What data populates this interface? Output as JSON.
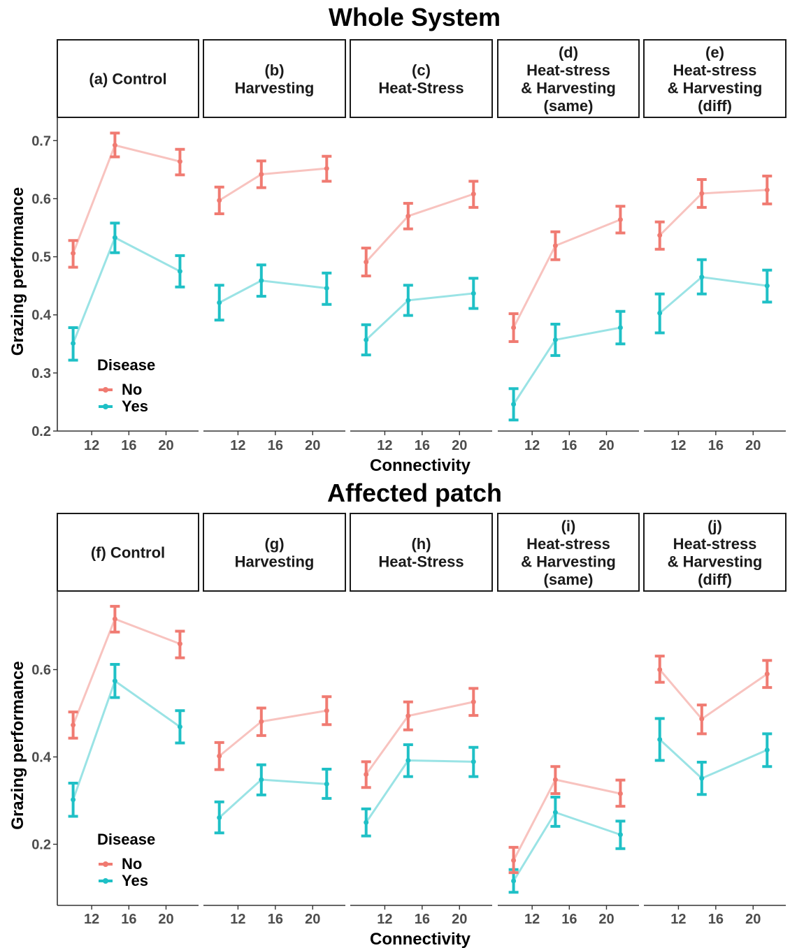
{
  "colors": {
    "No": "#f07b72",
    "Yes": "#1fc0c6"
  },
  "chart_data": [
    {
      "type": "line",
      "section_title": "Whole System",
      "xlabel": "Connectivity",
      "ylabel": "Grazing performance",
      "ylim": [
        0.2,
        0.74
      ],
      "y_ticks": [
        0.2,
        0.3,
        0.4,
        0.5,
        0.6,
        0.7
      ],
      "y_tick_labels": [
        "0.2",
        "0.3",
        "0.4",
        "0.5",
        "0.6",
        "0.7"
      ],
      "xlim": [
        8.3,
        23.5
      ],
      "x_ticks": [
        12,
        16,
        20
      ],
      "x_tick_labels": [
        "12",
        "16",
        "20"
      ],
      "x": [
        10,
        14.5,
        21.5
      ],
      "legend": {
        "title": "Disease",
        "entries": [
          "No",
          "Yes"
        ],
        "placement": "bottom-left of first panel"
      },
      "panels": [
        {
          "strip": [
            "(a) Control"
          ],
          "series": [
            {
              "name": "No",
              "values": [
                0.506,
                0.692,
                0.664
              ],
              "lower": [
                0.482,
                0.672,
                0.641
              ],
              "upper": [
                0.528,
                0.713,
                0.685
              ]
            },
            {
              "name": "Yes",
              "values": [
                0.351,
                0.533,
                0.475
              ],
              "lower": [
                0.322,
                0.507,
                0.448
              ],
              "upper": [
                0.378,
                0.558,
                0.502
              ]
            }
          ]
        },
        {
          "strip": [
            "(b)",
            "Harvesting"
          ],
          "series": [
            {
              "name": "No",
              "values": [
                0.597,
                0.642,
                0.652
              ],
              "lower": [
                0.574,
                0.619,
                0.63
              ],
              "upper": [
                0.62,
                0.665,
                0.673
              ]
            },
            {
              "name": "Yes",
              "values": [
                0.421,
                0.459,
                0.446
              ],
              "lower": [
                0.391,
                0.432,
                0.418
              ],
              "upper": [
                0.451,
                0.486,
                0.472
              ]
            }
          ]
        },
        {
          "strip": [
            "(c)",
            "Heat-Stress"
          ],
          "series": [
            {
              "name": "No",
              "values": [
                0.491,
                0.57,
                0.608
              ],
              "lower": [
                0.467,
                0.548,
                0.585
              ],
              "upper": [
                0.515,
                0.592,
                0.63
              ]
            },
            {
              "name": "Yes",
              "values": [
                0.357,
                0.425,
                0.437
              ],
              "lower": [
                0.331,
                0.399,
                0.411
              ],
              "upper": [
                0.383,
                0.451,
                0.463
              ]
            }
          ]
        },
        {
          "strip": [
            "(d)",
            "Heat-stress",
            "& Harvesting",
            "(same)"
          ],
          "series": [
            {
              "name": "No",
              "values": [
                0.378,
                0.519,
                0.564
              ],
              "lower": [
                0.354,
                0.495,
                0.541
              ],
              "upper": [
                0.402,
                0.543,
                0.587
              ]
            },
            {
              "name": "Yes",
              "values": [
                0.246,
                0.357,
                0.378
              ],
              "lower": [
                0.219,
                0.33,
                0.35
              ],
              "upper": [
                0.273,
                0.384,
                0.406
              ]
            }
          ]
        },
        {
          "strip": [
            "(e)",
            "Heat-stress",
            "& Harvesting",
            "(diff)"
          ],
          "series": [
            {
              "name": "No",
              "values": [
                0.537,
                0.609,
                0.615
              ],
              "lower": [
                0.513,
                0.585,
                0.591
              ],
              "upper": [
                0.56,
                0.633,
                0.639
              ]
            },
            {
              "name": "Yes",
              "values": [
                0.403,
                0.465,
                0.45
              ],
              "lower": [
                0.369,
                0.436,
                0.422
              ],
              "upper": [
                0.436,
                0.495,
                0.477
              ]
            }
          ]
        }
      ]
    },
    {
      "type": "line",
      "section_title": "Affected patch",
      "xlabel": "Connectivity",
      "ylabel": "Grazing performance",
      "ylim": [
        0.06,
        0.78
      ],
      "y_ticks": [
        0.2,
        0.4,
        0.6
      ],
      "y_tick_labels": [
        "0.2",
        "0.4",
        "0.6"
      ],
      "xlim": [
        8.3,
        23.5
      ],
      "x_ticks": [
        12,
        16,
        20
      ],
      "x_tick_labels": [
        "12",
        "16",
        "20"
      ],
      "x": [
        10,
        14.5,
        21.5
      ],
      "legend": {
        "title": "Disease",
        "entries": [
          "No",
          "Yes"
        ],
        "placement": "bottom-left of first panel"
      },
      "panels": [
        {
          "strip": [
            "(f) Control"
          ],
          "series": [
            {
              "name": "No",
              "values": [
                0.473,
                0.716,
                0.659
              ],
              "lower": [
                0.443,
                0.686,
                0.627
              ],
              "upper": [
                0.503,
                0.745,
                0.688
              ]
            },
            {
              "name": "Yes",
              "values": [
                0.302,
                0.574,
                0.469
              ],
              "lower": [
                0.264,
                0.536,
                0.432
              ],
              "upper": [
                0.34,
                0.612,
                0.506
              ]
            }
          ]
        },
        {
          "strip": [
            "(g)",
            "Harvesting"
          ],
          "series": [
            {
              "name": "No",
              "values": [
                0.402,
                0.481,
                0.506
              ],
              "lower": [
                0.371,
                0.449,
                0.474
              ],
              "upper": [
                0.433,
                0.512,
                0.538
              ]
            },
            {
              "name": "Yes",
              "values": [
                0.261,
                0.348,
                0.338
              ],
              "lower": [
                0.226,
                0.313,
                0.305
              ],
              "upper": [
                0.297,
                0.382,
                0.372
              ]
            }
          ]
        },
        {
          "strip": [
            "(h)",
            "Heat-Stress"
          ],
          "series": [
            {
              "name": "No",
              "values": [
                0.36,
                0.494,
                0.526
              ],
              "lower": [
                0.33,
                0.462,
                0.495
              ],
              "upper": [
                0.389,
                0.526,
                0.557
              ]
            },
            {
              "name": "Yes",
              "values": [
                0.25,
                0.392,
                0.389
              ],
              "lower": [
                0.219,
                0.355,
                0.355
              ],
              "upper": [
                0.281,
                0.428,
                0.422
              ]
            }
          ]
        },
        {
          "strip": [
            "(i)",
            "Heat-stress",
            "& Harvesting",
            "(same)"
          ],
          "series": [
            {
              "name": "No",
              "values": [
                0.163,
                0.348,
                0.316
              ],
              "lower": [
                0.135,
                0.316,
                0.287
              ],
              "upper": [
                0.193,
                0.378,
                0.347
              ]
            },
            {
              "name": "Yes",
              "values": [
                0.116,
                0.273,
                0.222
              ],
              "lower": [
                0.09,
                0.241,
                0.19
              ],
              "upper": [
                0.142,
                0.308,
                0.253
              ]
            }
          ]
        },
        {
          "strip": [
            "(j)",
            "Heat-stress",
            "& Harvesting",
            "(diff)"
          ],
          "series": [
            {
              "name": "No",
              "values": [
                0.6,
                0.487,
                0.59
              ],
              "lower": [
                0.571,
                0.453,
                0.559
              ],
              "upper": [
                0.631,
                0.519,
                0.621
              ]
            },
            {
              "name": "Yes",
              "values": [
                0.44,
                0.351,
                0.416
              ],
              "lower": [
                0.392,
                0.314,
                0.378
              ],
              "upper": [
                0.488,
                0.388,
                0.453
              ]
            }
          ]
        }
      ]
    }
  ]
}
